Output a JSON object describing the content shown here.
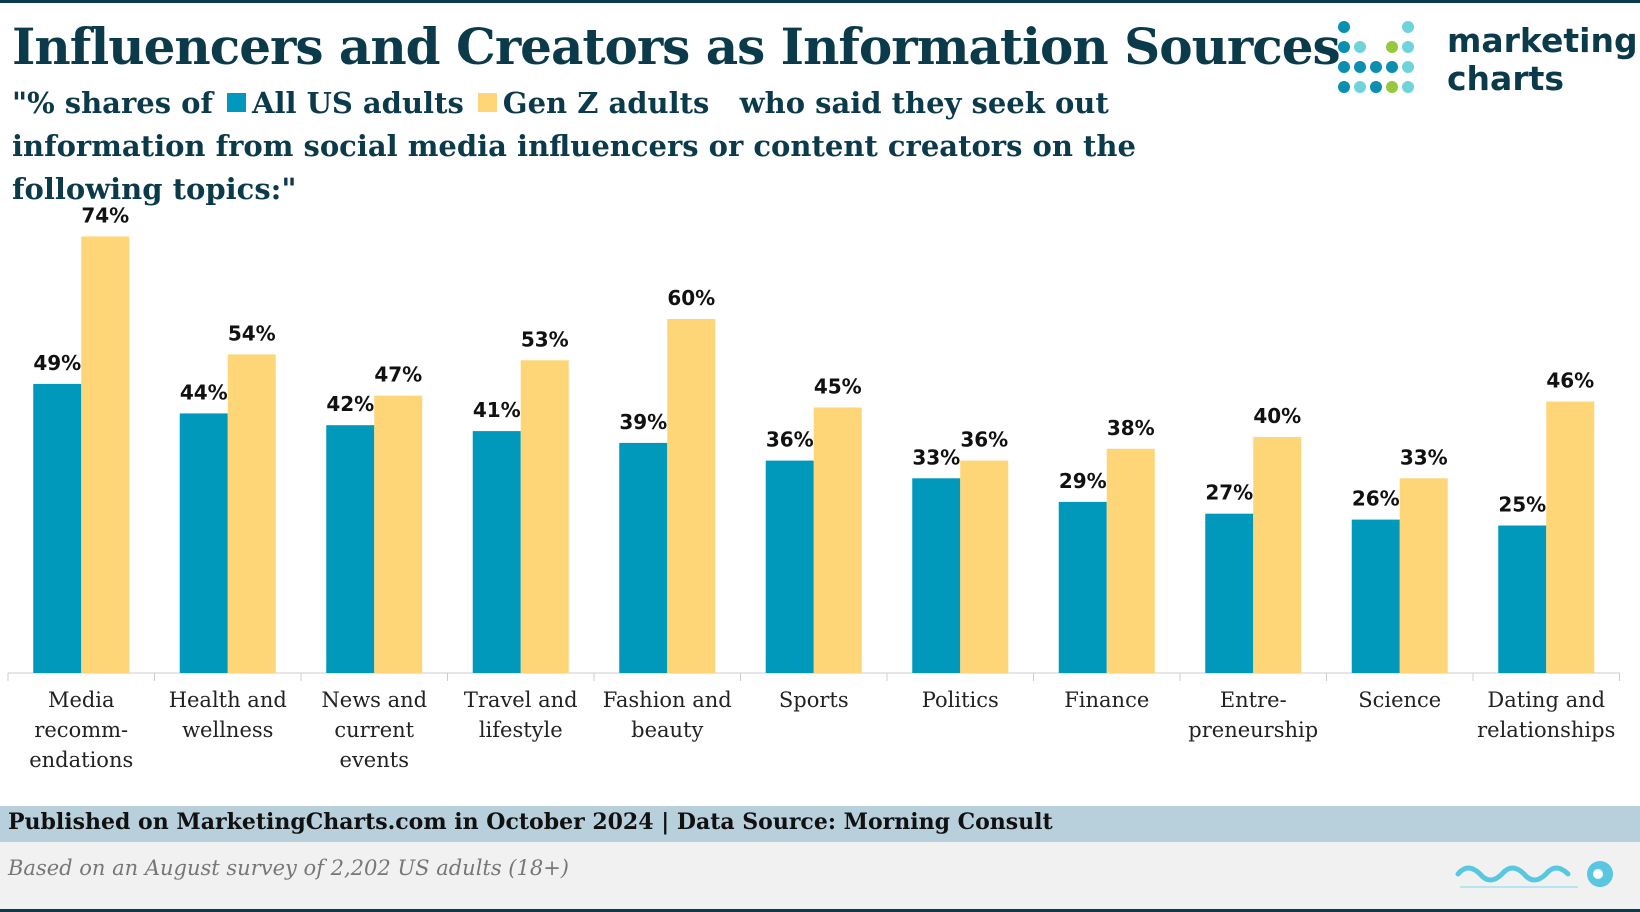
{
  "header": {
    "title": "Influencers and Creators as Information Sources",
    "subtitle_prefix": "\"% shares of",
    "legend_all": "All US adults",
    "legend_genz": "Gen Z adults",
    "subtitle_suffix": "who said they seek out information from social media influencers or content creators on the following topics:\""
  },
  "logo": {
    "line1": "marketing",
    "line2": "charts"
  },
  "chart_data": {
    "type": "bar",
    "categories": [
      [
        "Media",
        "recomm-",
        "endations"
      ],
      [
        "Health and",
        "wellness"
      ],
      [
        "News and",
        "current",
        "events"
      ],
      [
        "Travel and",
        "lifestyle"
      ],
      [
        "Fashion and",
        "beauty"
      ],
      [
        "Sports"
      ],
      [
        "Politics"
      ],
      [
        "Finance"
      ],
      [
        "Entre-",
        "preneurship"
      ],
      [
        "Science"
      ],
      [
        "Dating and",
        "relationships"
      ]
    ],
    "series": [
      {
        "name": "All US adults",
        "color": "#0099bb",
        "values": [
          49,
          44,
          42,
          41,
          39,
          36,
          33,
          29,
          27,
          26,
          25
        ]
      },
      {
        "name": "Gen Z adults",
        "color": "#fed577",
        "values": [
          74,
          54,
          47,
          53,
          60,
          45,
          36,
          38,
          40,
          33,
          46
        ]
      }
    ],
    "value_suffix": "%",
    "ylim": [
      0,
      80
    ],
    "grid": false,
    "legend": "in subtitle"
  },
  "footer": {
    "published": "Published on MarketingCharts.com in October 2024 | Data Source: Morning Consult",
    "note": "Based on an August survey of 2,202 US adults (18+)"
  },
  "colors": {
    "title": "#0b3a4a",
    "footer_bar": "#b8cfdc",
    "footer_area": "#f1f1f1"
  },
  "watermark": {
    "icon": "watermark-logo"
  }
}
